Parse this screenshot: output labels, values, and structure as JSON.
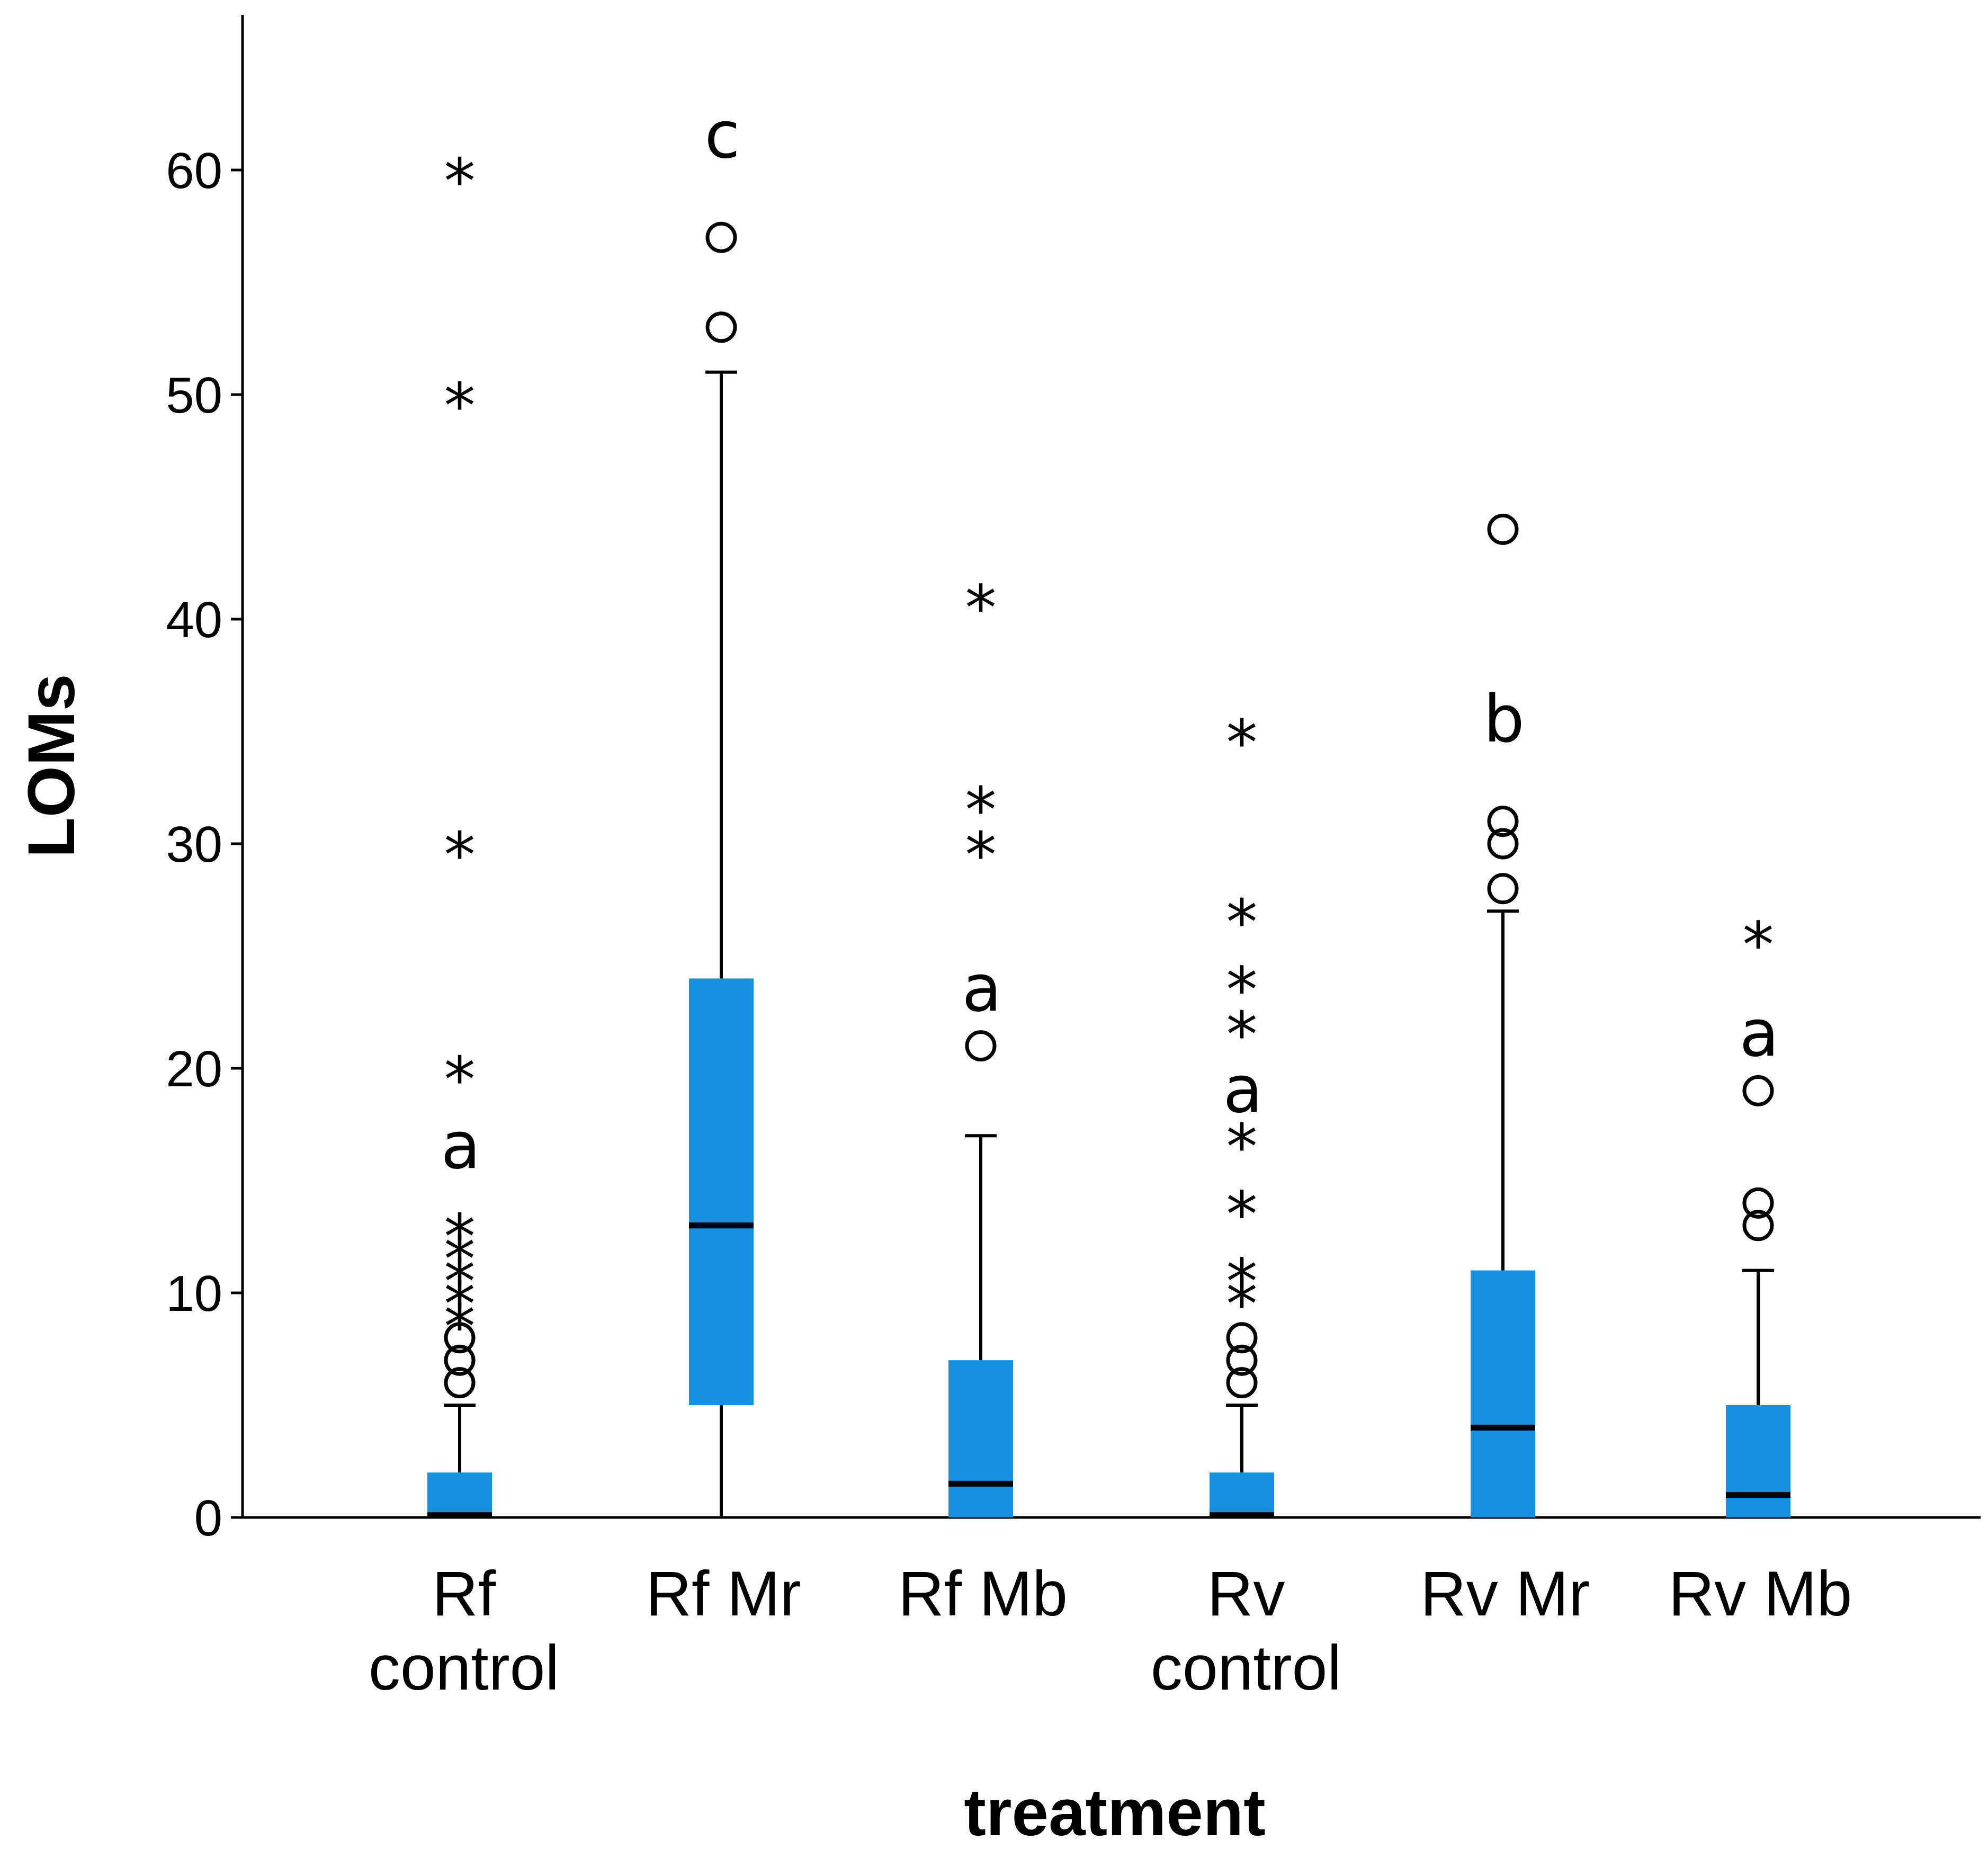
{
  "chart_data": {
    "type": "boxplot",
    "title": "",
    "xlabel": "treatment",
    "ylabel": "LOMs",
    "ylim": [
      0,
      67
    ],
    "yticks": [
      0,
      10,
      20,
      30,
      40,
      50,
      60
    ],
    "grid": false,
    "box_color": "#1590E3",
    "median_color": "#000000",
    "groups": [
      {
        "label": [
          "Rf",
          "control"
        ],
        "min": 0,
        "q1": 0,
        "median": 0.1,
        "q3": 2,
        "max": 5,
        "outliers": [
          6,
          7,
          8
        ],
        "extremes": [
          9,
          10,
          11,
          12,
          13,
          20,
          30,
          50,
          60
        ],
        "letter": "a",
        "letter_y": 16.5
      },
      {
        "label": [
          "Rf Mr"
        ],
        "min": 0,
        "q1": 5,
        "median": 13,
        "q3": 24,
        "max": 51,
        "outliers": [
          53,
          57
        ],
        "extremes": [],
        "letter": "c",
        "letter_y": 61.5
      },
      {
        "label": [
          "Rf Mb"
        ],
        "min": 0,
        "q1": 0,
        "median": 1.5,
        "q3": 7,
        "max": 17,
        "outliers": [
          21
        ],
        "extremes": [
          30,
          32,
          41
        ],
        "letter": "a",
        "letter_y": 23.5
      },
      {
        "label": [
          "Rv",
          "control"
        ],
        "min": 0,
        "q1": 0,
        "median": 0.1,
        "q3": 2,
        "max": 5,
        "outliers": [
          6,
          7,
          8
        ],
        "extremes": [
          10,
          11,
          14,
          17,
          22,
          24,
          27,
          35
        ],
        "letter": "a",
        "letter_y": 19
      },
      {
        "label": [
          "Rv Mr"
        ],
        "min": 0,
        "q1": 0,
        "median": 4,
        "q3": 11,
        "max": 27,
        "outliers": [
          28,
          30,
          31,
          44
        ],
        "extremes": [],
        "letter": "b",
        "letter_y": 35.5
      },
      {
        "label": [
          "Rv Mb"
        ],
        "min": 0,
        "q1": 0,
        "median": 1,
        "q3": 5,
        "max": 11,
        "outliers": [
          13,
          14,
          19
        ],
        "extremes": [
          26
        ],
        "letter": "a",
        "letter_y": 21.5
      }
    ]
  }
}
